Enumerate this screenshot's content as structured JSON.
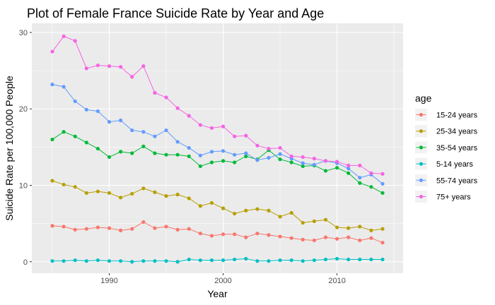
{
  "chart_data": {
    "type": "line",
    "title": "Plot of Female France Suicide Rate by Year and Age",
    "xlabel": "Year",
    "ylabel": "Suicide Rate per 100,000 People",
    "xlim": [
      1983.2,
      2015.8
    ],
    "ylim": [
      -1.5,
      31.2
    ],
    "x_ticks": [
      1990,
      2000,
      2010
    ],
    "y_ticks": [
      0,
      10,
      20,
      30
    ],
    "x_tick_labels": [
      "1990",
      "2000",
      "2010"
    ],
    "y_tick_labels": [
      "0",
      "10",
      "20",
      "30"
    ],
    "grid": true,
    "legend": {
      "title": "age",
      "position": "right"
    },
    "x": [
      1985,
      1986,
      1987,
      1988,
      1989,
      1990,
      1991,
      1992,
      1993,
      1994,
      1995,
      1996,
      1997,
      1998,
      1999,
      2000,
      2001,
      2002,
      2003,
      2004,
      2005,
      2006,
      2007,
      2008,
      2009,
      2010,
      2011,
      2012,
      2013,
      2014
    ],
    "series": [
      {
        "name": "15-24 years",
        "color": "#F8766D",
        "values": [
          4.7,
          4.6,
          4.2,
          4.3,
          4.5,
          4.4,
          4.1,
          4.3,
          5.2,
          4.4,
          4.6,
          4.2,
          4.3,
          3.7,
          3.4,
          3.6,
          3.6,
          3.2,
          3.7,
          3.5,
          3.3,
          3.1,
          2.9,
          2.8,
          3.2,
          3.0,
          3.2,
          2.8,
          3.1,
          2.5
        ]
      },
      {
        "name": "25-34 years",
        "color": "#B79F00",
        "values": [
          10.6,
          10.1,
          9.8,
          9.0,
          9.2,
          9.0,
          8.4,
          8.9,
          9.6,
          9.1,
          8.6,
          8.8,
          8.3,
          7.3,
          7.7,
          7.0,
          6.3,
          6.7,
          6.9,
          6.7,
          5.9,
          6.4,
          5.1,
          5.3,
          5.5,
          4.5,
          4.4,
          4.6,
          4.1,
          4.3
        ]
      },
      {
        "name": "35-54 years",
        "color": "#00BA38",
        "values": [
          16.0,
          17.0,
          16.4,
          15.6,
          14.8,
          13.7,
          14.4,
          14.2,
          15.1,
          14.2,
          14.0,
          14.0,
          13.8,
          12.5,
          13.0,
          13.2,
          13.0,
          13.8,
          13.4,
          14.6,
          13.4,
          13.0,
          12.5,
          12.6,
          11.9,
          12.3,
          11.6,
          10.3,
          9.8,
          9.0
        ]
      },
      {
        "name": "5-14 years",
        "color": "#00BFC4",
        "values": [
          0.1,
          0.1,
          0.2,
          0.1,
          0.2,
          0.1,
          0.1,
          0.0,
          0.1,
          0.1,
          0.1,
          0.0,
          0.3,
          0.2,
          0.2,
          0.2,
          0.3,
          0.4,
          0.1,
          0.1,
          0.2,
          0.2,
          0.1,
          0.2,
          0.3,
          0.4,
          0.3,
          0.3,
          0.3,
          0.3
        ]
      },
      {
        "name": "55-74 years",
        "color": "#619CFF",
        "values": [
          23.2,
          22.9,
          21.0,
          19.9,
          19.7,
          18.3,
          18.5,
          17.2,
          17.0,
          16.4,
          17.2,
          15.7,
          14.9,
          13.9,
          14.4,
          14.5,
          14.0,
          14.2,
          13.3,
          13.6,
          14.1,
          13.5,
          12.9,
          12.7,
          13.2,
          12.9,
          12.2,
          11.0,
          11.4,
          10.2
        ]
      },
      {
        "name": "75+ years",
        "color": "#F564E3",
        "values": [
          27.5,
          29.5,
          28.9,
          25.3,
          25.7,
          25.6,
          25.5,
          24.2,
          25.6,
          22.1,
          21.5,
          20.1,
          19.1,
          17.9,
          17.5,
          17.7,
          16.4,
          16.5,
          15.2,
          14.8,
          14.9,
          13.8,
          13.7,
          13.5,
          13.2,
          13.1,
          12.6,
          12.6,
          11.6,
          11.5
        ]
      }
    ]
  }
}
